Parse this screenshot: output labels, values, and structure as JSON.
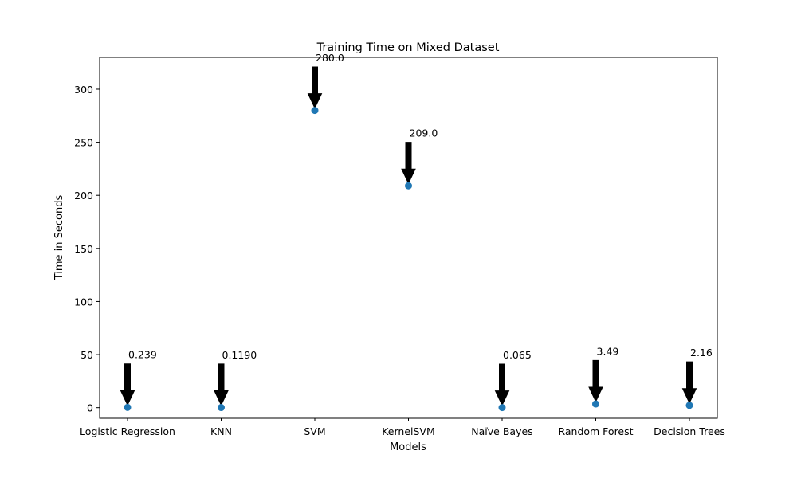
{
  "chart_data": {
    "type": "scatter",
    "title": "Training Time on Mixed Dataset",
    "xlabel": "Models",
    "ylabel": "Time in Seconds",
    "categories": [
      "Logistic Regression",
      "KNN",
      "SVM",
      "KernelSVM",
      "Naïve Bayes",
      "Random Forest",
      "Decision Trees"
    ],
    "values": [
      0.239,
      0.119,
      280.0,
      209.0,
      0.065,
      3.49,
      2.16
    ],
    "annotations": [
      "0.239",
      "0.1190",
      "280.0",
      "209.0",
      "0.065",
      "3.49",
      "2.16"
    ],
    "yticks": [
      0,
      50,
      100,
      150,
      200,
      250,
      300
    ],
    "ylim": [
      -10,
      330
    ],
    "grid": false,
    "legend": "none",
    "colors": {
      "point": "#1f77b4",
      "arrow": "#000000"
    }
  }
}
